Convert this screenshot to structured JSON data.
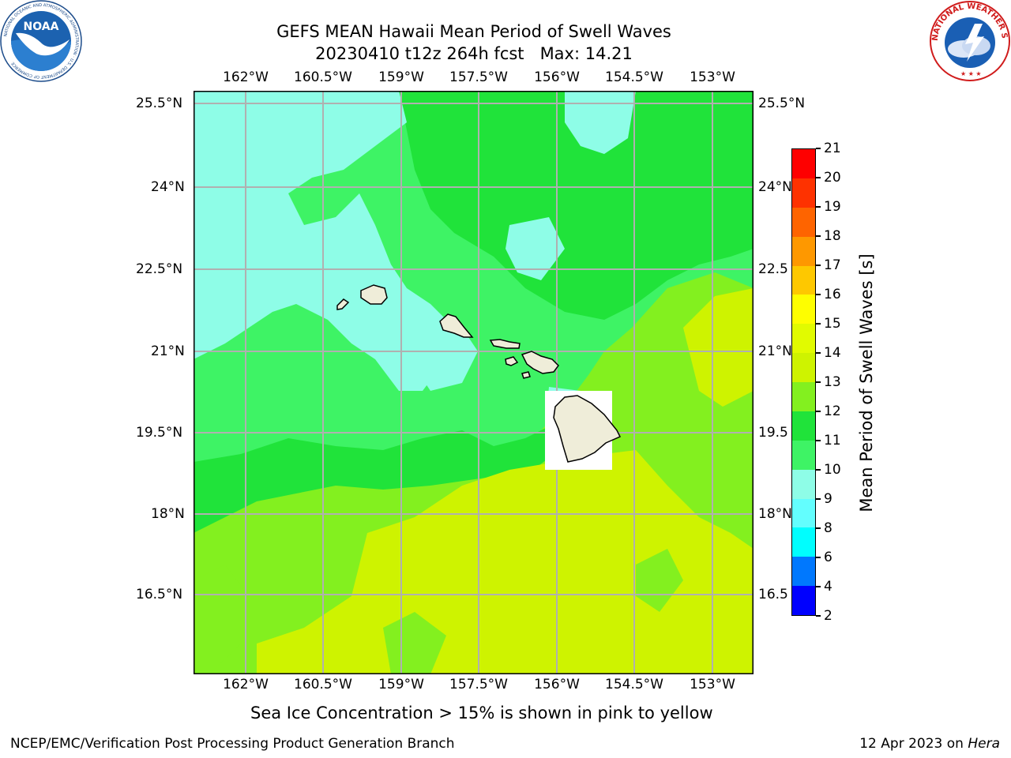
{
  "header": {
    "title_line1": "GEFS MEAN Hawaii Mean Period of Swell Waves",
    "title_line2": "20230410 t12z 264h fcst   Max: 14.21"
  },
  "logos": {
    "left": "noaa-logo",
    "right": "national-weather-service-logo",
    "left_arc_text": "NATIONAL OCEANIC AND ATMOSPHERIC ADMINISTRATION · U.S. DEPARTMENT OF COMMERCE",
    "left_center_text": "NOAA",
    "right_arc_text": "NATIONAL WEATHER SERVICE"
  },
  "map": {
    "lon_labels": [
      "162°W",
      "160.5°W",
      "159°W",
      "157.5°W",
      "156°W",
      "154.5°W",
      "153°W"
    ],
    "lat_labels": [
      "25.5°N",
      "24°N",
      "22.5°N",
      "21°N",
      "19.5°N",
      "18°N",
      "16.5°N"
    ],
    "lat_labels_right": [
      "25.5°N",
      "24°N",
      "22.5",
      "21°N",
      "19.5",
      "18°N",
      "16.5"
    ],
    "field_colors": {
      "cyan_9_10": "#8efde7",
      "green_10_11": "#3ef365",
      "green_11_12": "#20e33a",
      "lime_12_13": "#83f01f",
      "yellow_13_14": "#cef300",
      "land": "#efedd9",
      "grid": "#b0b0b0"
    },
    "islands": [
      "Kauai",
      "Niihau",
      "Oahu",
      "Molokai",
      "Lanai",
      "Maui",
      "Kahoolawe",
      "Hawaii"
    ]
  },
  "colorbar": {
    "title": "Mean Period of Swell Waves [s]",
    "ticks": [
      "2",
      "4",
      "6",
      "8",
      "9",
      "10",
      "11",
      "12",
      "13",
      "14",
      "15",
      "16",
      "17",
      "18",
      "19",
      "20",
      "21"
    ],
    "colors": [
      "#0000fe",
      "#0078fe",
      "#00fefe",
      "#63fefe",
      "#8efde7",
      "#3ef365",
      "#20e33a",
      "#83f01f",
      "#cef300",
      "#e1fb00",
      "#fefe00",
      "#fec800",
      "#fe9800",
      "#fe6400",
      "#fe3200",
      "#fe0000"
    ]
  },
  "caption": "Sea Ice Concentration > 15% is shown in pink to yellow",
  "footer": {
    "left": "NCEP/EMC/Verification Post Processing Product Generation Branch",
    "right_prefix": "12 Apr 2023 on ",
    "right_machine": "Hera"
  }
}
